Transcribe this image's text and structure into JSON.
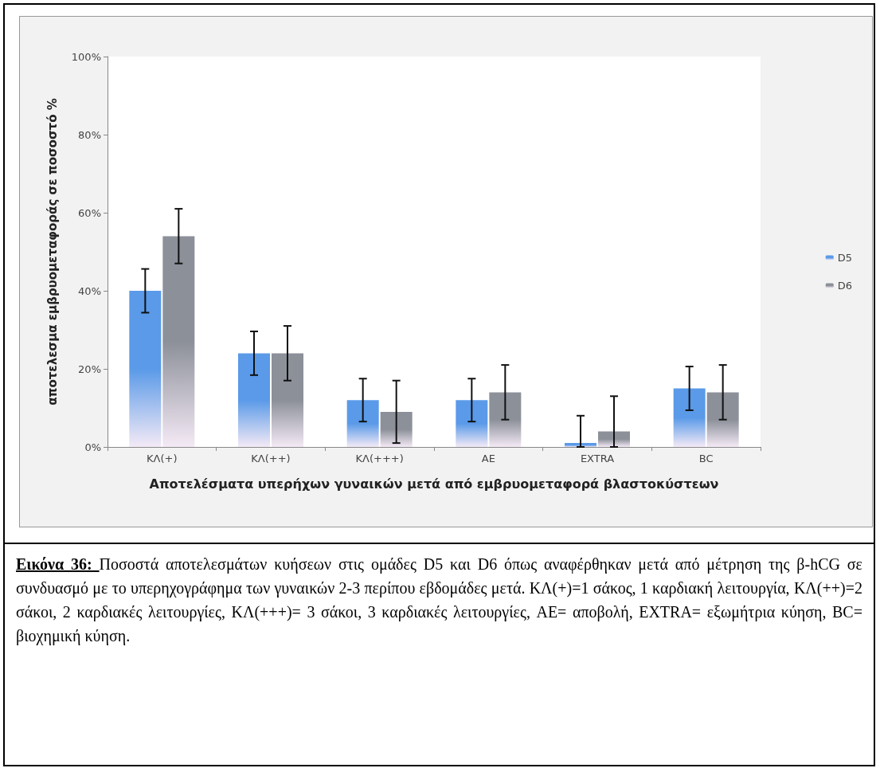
{
  "chart_data": {
    "type": "bar",
    "xlabel": "Αποτελέσματα υπερήχων γυναικών μετά από εμβρυομεταφορά βλαστοκύστεων",
    "ylabel": "αποτελεσμα εμβρυομεταφοράς σε ποσοστό %",
    "categories": [
      "ΚΛ(+)",
      "ΚΛ(++)",
      "ΚΛ(+++)",
      "AE",
      "EXTRA",
      "BC"
    ],
    "series": [
      {
        "name": "D5",
        "color": "#5a9ae8",
        "values": [
          40,
          24,
          12,
          12,
          1,
          15
        ],
        "errors": [
          5.6,
          5.6,
          5.5,
          5.5,
          [
            0,
            8
          ],
          5.6
        ]
      },
      {
        "name": "D6",
        "color": "#8c9099",
        "values": [
          54,
          24,
          9,
          14,
          4,
          14
        ],
        "errors": [
          7,
          7,
          8,
          7,
          [
            0,
            13
          ],
          7
        ]
      }
    ],
    "ylim": [
      0,
      100
    ],
    "yticks": [
      {
        "value": 0,
        "label": "0%"
      },
      {
        "value": 20,
        "label": "20%"
      },
      {
        "value": 40,
        "label": "40%"
      },
      {
        "value": 60,
        "label": "60%"
      },
      {
        "value": 80,
        "label": "80%"
      },
      {
        "value": 100,
        "label": "100%"
      }
    ],
    "grid": false,
    "legend": "right",
    "annotations": [
      "Εικόνα 36:",
      "Ποσοστά αποτελεσμάτων κυήσεων στις ομάδες D5 και D6 όπως αναφέρθηκαν μετά από μέτρηση της β-hCG σε συνδυασμό με το υπερηχογράφημα των γυναικών 2-3 περίπου εβδομάδες μετά. ΚΛ(+)=1 σάκος, 1 καρδιακή λειτουργία, ΚΛ(++)=2 σάκοι, 2 καρδιακές λειτουργίες, ΚΛ(+++)= 3 σάκοι, 3 καρδιακές λειτουργίες, AE= αποβολή, EXTRA= εξωμήτρια κύηση, BC= βιοχημική κύηση."
    ]
  }
}
